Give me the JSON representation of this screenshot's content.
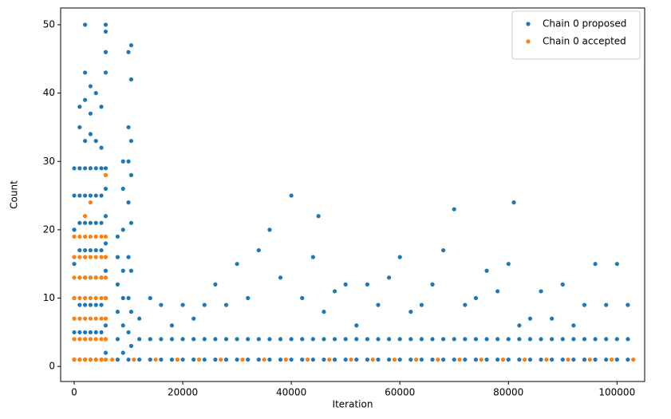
{
  "chart_data": {
    "type": "scatter",
    "x_label": "Iteration",
    "y_label": "Count",
    "xlim": [
      -2500,
      105100
    ],
    "ylim": [
      -2.2,
      52.45
    ],
    "xticks": [
      0,
      20000,
      40000,
      60000,
      80000,
      100000
    ],
    "yticks": [
      0,
      10,
      20,
      30,
      40,
      50
    ],
    "legend": "upper right",
    "series": [
      {
        "name": "Chain 0 proposed",
        "color": "#1f77b4",
        "x": [
          0,
          0,
          0,
          0,
          0,
          0,
          0,
          1000,
          1000,
          1000,
          1000,
          1000,
          1000,
          1000,
          1000,
          1000,
          1000,
          2000,
          2000,
          2000,
          2000,
          2000,
          2000,
          2000,
          2000,
          2000,
          2000,
          2000,
          2000,
          3000,
          3000,
          3000,
          3000,
          3000,
          3000,
          3000,
          3000,
          3000,
          3000,
          3000,
          4000,
          4000,
          4000,
          4000,
          4000,
          4000,
          4000,
          4000,
          4000,
          4000,
          5000,
          5000,
          5000,
          5000,
          5000,
          5000,
          5000,
          5000,
          5000,
          5000,
          5800,
          5800,
          5800,
          5800,
          5800,
          5800,
          5800,
          5800,
          5800,
          5800,
          5800,
          5800,
          8000,
          8000,
          8000,
          8000,
          8000,
          8000,
          9000,
          9000,
          9000,
          9000,
          9000,
          9000,
          9000,
          10000,
          10000,
          10000,
          10000,
          10000,
          10000,
          10000,
          10000,
          10500,
          10500,
          10500,
          10500,
          10500,
          10500,
          10500,
          10500,
          12000,
          12000,
          12000,
          14000,
          14000,
          14000,
          16000,
          16000,
          16000,
          18000,
          18000,
          18000,
          20000,
          20000,
          20000,
          22000,
          22000,
          22000,
          24000,
          24000,
          24000,
          26000,
          26000,
          26000,
          28000,
          28000,
          28000,
          30000,
          30000,
          30000,
          32000,
          32000,
          32000,
          34000,
          34000,
          34000,
          36000,
          36000,
          36000,
          38000,
          38000,
          38000,
          40000,
          40000,
          40000,
          42000,
          42000,
          42000,
          44000,
          44000,
          44000,
          46000,
          46000,
          46000,
          48000,
          48000,
          48000,
          50000,
          50000,
          50000,
          52000,
          52000,
          52000,
          54000,
          54000,
          54000,
          56000,
          56000,
          56000,
          58000,
          58000,
          58000,
          60000,
          60000,
          60000,
          62000,
          62000,
          62000,
          64000,
          64000,
          64000,
          66000,
          66000,
          66000,
          68000,
          68000,
          68000,
          70000,
          70000,
          70000,
          72000,
          72000,
          72000,
          74000,
          74000,
          74000,
          76000,
          76000,
          76000,
          78000,
          78000,
          78000,
          80000,
          80000,
          80000,
          82000,
          82000,
          82000,
          84000,
          84000,
          84000,
          86000,
          86000,
          86000,
          88000,
          88000,
          88000,
          90000,
          90000,
          90000,
          92000,
          92000,
          92000,
          94000,
          94000,
          94000,
          96000,
          96000,
          96000,
          98000,
          98000,
          98000,
          100000,
          100000,
          100000,
          102000,
          102000,
          102000,
          45000,
          81000
        ],
        "values": [
          1,
          5,
          10,
          15,
          20,
          25,
          29,
          1,
          5,
          9,
          13,
          17,
          21,
          25,
          29,
          35,
          38,
          1,
          5,
          9,
          13,
          17,
          21,
          25,
          29,
          33,
          39,
          43,
          50,
          1,
          5,
          9,
          13,
          17,
          21,
          25,
          29,
          34,
          37,
          41,
          1,
          5,
          9,
          13,
          17,
          21,
          25,
          29,
          33,
          40,
          1,
          5,
          9,
          13,
          17,
          21,
          25,
          29,
          32,
          38,
          2,
          6,
          10,
          14,
          18,
          22,
          26,
          29,
          43,
          46,
          49,
          50,
          1,
          4,
          8,
          12,
          16,
          19,
          2,
          6,
          10,
          14,
          20,
          26,
          30,
          1,
          5,
          10,
          16,
          24,
          30,
          35,
          46,
          3,
          8,
          14,
          21,
          28,
          33,
          42,
          47,
          1,
          4,
          7,
          1,
          4,
          10,
          1,
          4,
          9,
          1,
          4,
          6,
          1,
          4,
          9,
          1,
          4,
          7,
          1,
          4,
          9,
          1,
          4,
          12,
          1,
          4,
          9,
          1,
          4,
          15,
          1,
          4,
          10,
          1,
          4,
          17,
          1,
          4,
          20,
          1,
          4,
          13,
          1,
          4,
          25,
          1,
          4,
          10,
          1,
          4,
          16,
          1,
          4,
          8,
          1,
          4,
          11,
          1,
          4,
          12,
          1,
          4,
          6,
          1,
          4,
          12,
          1,
          4,
          9,
          1,
          4,
          13,
          1,
          4,
          16,
          1,
          4,
          8,
          1,
          4,
          9,
          1,
          4,
          12,
          1,
          4,
          17,
          1,
          4,
          23,
          1,
          4,
          9,
          1,
          4,
          10,
          1,
          4,
          14,
          1,
          4,
          11,
          1,
          4,
          15,
          1,
          4,
          6,
          1,
          4,
          7,
          1,
          4,
          11,
          1,
          4,
          7,
          1,
          4,
          12,
          1,
          4,
          6,
          1,
          4,
          9,
          1,
          4,
          15,
          1,
          4,
          9,
          1,
          4,
          15,
          1,
          4,
          9,
          22,
          24
        ]
      },
      {
        "name": "Chain 0 accepted",
        "color": "#ff7f0e",
        "x": [
          0,
          0,
          0,
          0,
          0,
          0,
          0,
          1000,
          1000,
          1000,
          1000,
          1000,
          1000,
          1000,
          2000,
          2000,
          2000,
          2000,
          2000,
          2000,
          2000,
          3000,
          3000,
          3000,
          3000,
          3000,
          3000,
          3000,
          4000,
          4000,
          4000,
          4000,
          4000,
          4000,
          4000,
          5000,
          5000,
          5000,
          5000,
          5000,
          5000,
          5000,
          5800,
          5800,
          5800,
          5800,
          5800,
          5800,
          5800,
          2000,
          3000,
          5800,
          7000,
          11000,
          15000,
          19000,
          23000,
          27000,
          31000,
          35000,
          39000,
          43000,
          47000,
          51000,
          55000,
          59000,
          63000,
          67000,
          71000,
          75000,
          79000,
          83000,
          87000,
          91000,
          95000,
          99000,
          103000
        ],
        "values": [
          1,
          4,
          7,
          10,
          13,
          16,
          19,
          1,
          4,
          7,
          10,
          13,
          16,
          19,
          1,
          4,
          7,
          10,
          13,
          16,
          19,
          1,
          4,
          7,
          10,
          13,
          16,
          19,
          1,
          4,
          7,
          10,
          13,
          16,
          19,
          1,
          4,
          7,
          10,
          13,
          16,
          19,
          1,
          4,
          7,
          10,
          13,
          16,
          19,
          22,
          24,
          28,
          1,
          1,
          1,
          1,
          1,
          1,
          1,
          1,
          1,
          1,
          1,
          1,
          1,
          1,
          1,
          1,
          1,
          1,
          1,
          1,
          1,
          1,
          1,
          1,
          1
        ]
      }
    ]
  }
}
